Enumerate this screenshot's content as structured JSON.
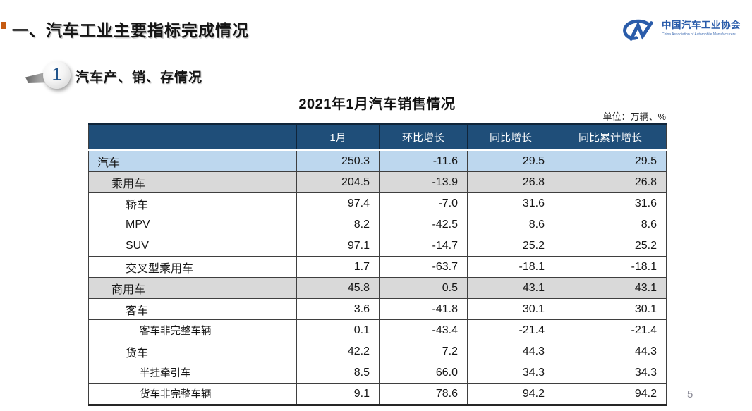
{
  "page": {
    "title": "一、汽车工业主要指标完成情况",
    "page_number": "5"
  },
  "logo": {
    "org_name_cn": "中国汽车工业协会",
    "org_name_en": "China Association of Automobile Manufacturers",
    "brand_color": "#2A5CAA"
  },
  "section": {
    "number": "1",
    "title": "汽车产、销、存情况"
  },
  "table": {
    "title": "2021年1月汽车销售情况",
    "unit_label": "单位：万辆、%",
    "columns": [
      "",
      "1月",
      "环比增长",
      "同比增长",
      "同比累计增长"
    ],
    "rows": [
      {
        "label": "汽车",
        "level": 0,
        "band": "blue",
        "values": [
          "250.3",
          "-11.6",
          "29.5",
          "29.5"
        ]
      },
      {
        "label": "乘用车",
        "level": 1,
        "band": "gray",
        "values": [
          "204.5",
          "-13.9",
          "26.8",
          "26.8"
        ]
      },
      {
        "label": "轿车",
        "level": 2,
        "band": "none",
        "values": [
          "97.4",
          "-7.0",
          "31.6",
          "31.6"
        ]
      },
      {
        "label": "MPV",
        "level": 2,
        "band": "none",
        "values": [
          "8.2",
          "-42.5",
          "8.6",
          "8.6"
        ]
      },
      {
        "label": "SUV",
        "level": 2,
        "band": "none",
        "values": [
          "97.1",
          "-14.7",
          "25.2",
          "25.2"
        ]
      },
      {
        "label": "交叉型乘用车",
        "level": 2,
        "band": "none",
        "values": [
          "1.7",
          "-63.7",
          "-18.1",
          "-18.1"
        ]
      },
      {
        "label": "商用车",
        "level": 1,
        "band": "gray",
        "values": [
          "45.8",
          "0.5",
          "43.1",
          "43.1"
        ]
      },
      {
        "label": "客车",
        "level": 2,
        "band": "none",
        "values": [
          "3.6",
          "-41.8",
          "30.1",
          "30.1"
        ]
      },
      {
        "label": "客车非完整车辆",
        "level": 3,
        "band": "none",
        "values": [
          "0.1",
          "-43.4",
          "-21.4",
          "-21.4"
        ]
      },
      {
        "label": "货车",
        "level": 2,
        "band": "none",
        "values": [
          "42.2",
          "7.2",
          "44.3",
          "44.3"
        ]
      },
      {
        "label": "半挂牵引车",
        "level": 3,
        "band": "none",
        "values": [
          "8.5",
          "66.0",
          "34.3",
          "34.3"
        ]
      },
      {
        "label": "货车非完整车辆",
        "level": 3,
        "band": "none",
        "values": [
          "9.1",
          "78.6",
          "94.2",
          "94.2"
        ]
      }
    ],
    "colors": {
      "header_bg": "#1F4E79",
      "header_text": "#FFFFFF",
      "row_blue": "#BDD7EE",
      "row_gray": "#D9D9D9",
      "accent_red": "#C55A11"
    }
  }
}
